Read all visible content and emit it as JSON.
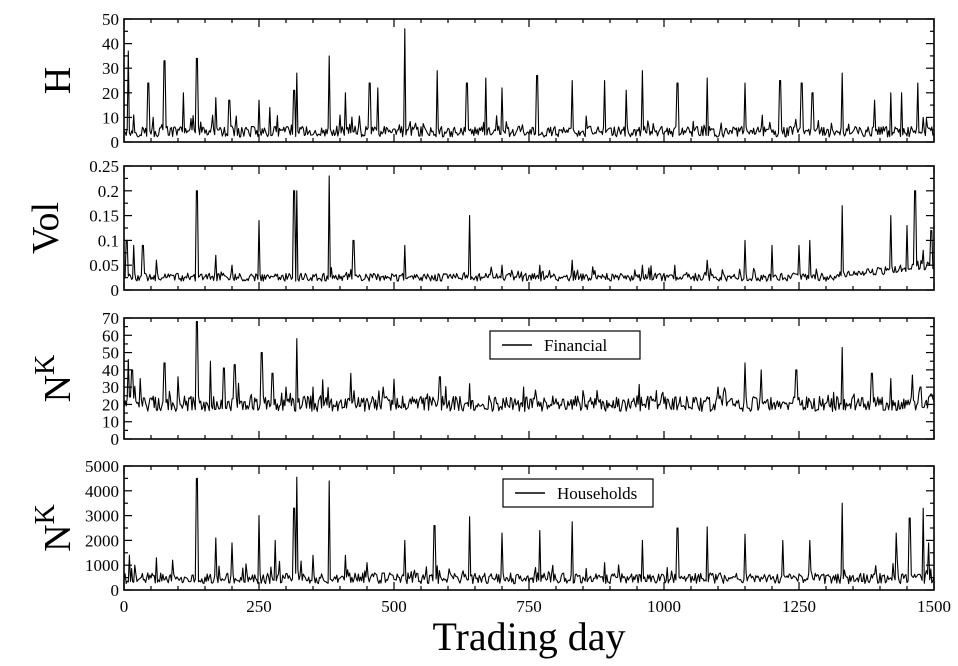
{
  "chart_data": [
    {
      "type": "line",
      "ylabel": "H",
      "ylabel_sup": "",
      "ylim": [
        0,
        50
      ],
      "yticks": [
        "0",
        "10",
        "20",
        "30",
        "40",
        "50"
      ],
      "xlim": [
        0,
        1500
      ],
      "xticks": [
        "0",
        "250",
        "500",
        "750",
        "1000",
        "1250",
        "1500"
      ],
      "show_x_tick_labels": false,
      "legend": "",
      "series": [
        {
          "values_shown": "noisy daily series",
          "baseline": 4,
          "noise": 2.2,
          "spikes": [
            [
              8,
              37
            ],
            [
              18,
              11
            ],
            [
              45,
              24
            ],
            [
              75,
              33
            ],
            [
              110,
              20
            ],
            [
              135,
              34
            ],
            [
              170,
              18
            ],
            [
              195,
              17
            ],
            [
              250,
              17
            ],
            [
              270,
              14
            ],
            [
              315,
              21
            ],
            [
              320,
              28
            ],
            [
              380,
              35
            ],
            [
              410,
              20
            ],
            [
              455,
              24
            ],
            [
              470,
              22
            ],
            [
              520,
              46
            ],
            [
              580,
              29
            ],
            [
              635,
              24
            ],
            [
              670,
              26
            ],
            [
              700,
              22
            ],
            [
              765,
              27
            ],
            [
              830,
              25
            ],
            [
              890,
              25
            ],
            [
              930,
              21
            ],
            [
              960,
              29
            ],
            [
              1025,
              24
            ],
            [
              1080,
              26
            ],
            [
              1150,
              24
            ],
            [
              1215,
              25
            ],
            [
              1255,
              24
            ],
            [
              1275,
              20
            ],
            [
              1330,
              28
            ],
            [
              1390,
              17
            ],
            [
              1420,
              20
            ],
            [
              1440,
              20
            ],
            [
              1470,
              24
            ],
            [
              1480,
              10
            ]
          ]
        }
      ]
    },
    {
      "type": "line",
      "ylabel": "Vol",
      "ylabel_sup": "",
      "ylim": [
        0,
        0.25
      ],
      "yticks": [
        "0",
        "0.05",
        "0.1",
        "0.15",
        "0.2",
        "0.25"
      ],
      "xlim": [
        0,
        1500
      ],
      "xticks": [
        "0",
        "250",
        "500",
        "750",
        "1000",
        "1250",
        "1500"
      ],
      "show_x_tick_labels": false,
      "legend": "",
      "series": [
        {
          "values_shown": "noisy daily series",
          "baseline": 0.025,
          "noise": 0.008,
          "trend_end": 0.05,
          "spikes": [
            [
              5,
              0.1
            ],
            [
              18,
              0.09
            ],
            [
              35,
              0.09
            ],
            [
              60,
              0.06
            ],
            [
              135,
              0.2
            ],
            [
              170,
              0.07
            ],
            [
              200,
              0.05
            ],
            [
              250,
              0.14
            ],
            [
              315,
              0.2
            ],
            [
              320,
              0.2
            ],
            [
              380,
              0.23
            ],
            [
              425,
              0.1
            ],
            [
              520,
              0.09
            ],
            [
              640,
              0.15
            ],
            [
              700,
              0.05
            ],
            [
              770,
              0.05
            ],
            [
              830,
              0.06
            ],
            [
              960,
              0.05
            ],
            [
              1020,
              0.05
            ],
            [
              1080,
              0.06
            ],
            [
              1150,
              0.1
            ],
            [
              1200,
              0.09
            ],
            [
              1250,
              0.09
            ],
            [
              1270,
              0.1
            ],
            [
              1330,
              0.17
            ],
            [
              1420,
              0.15
            ],
            [
              1450,
              0.13
            ],
            [
              1465,
              0.2
            ],
            [
              1480,
              0.08
            ],
            [
              1495,
              0.12
            ]
          ]
        }
      ]
    },
    {
      "type": "line",
      "ylabel": "N",
      "ylabel_sup": "K",
      "ylim": [
        0,
        70
      ],
      "yticks": [
        "0",
        "10",
        "20",
        "30",
        "40",
        "50",
        "60",
        "70"
      ],
      "xlim": [
        0,
        1500
      ],
      "xticks": [
        "0",
        "250",
        "500",
        "750",
        "1000",
        "1250",
        "1500"
      ],
      "show_x_tick_labels": false,
      "legend": "Financial",
      "series": [
        {
          "name": "Financial",
          "values_shown": "noisy daily series",
          "baseline": 20,
          "noise": 4.5,
          "spikes": [
            [
              8,
              46
            ],
            [
              15,
              40
            ],
            [
              30,
              35
            ],
            [
              75,
              44
            ],
            [
              100,
              36
            ],
            [
              135,
              68
            ],
            [
              160,
              45
            ],
            [
              185,
              41
            ],
            [
              205,
              43
            ],
            [
              255,
              50
            ],
            [
              275,
              38
            ],
            [
              300,
              30
            ],
            [
              320,
              58
            ],
            [
              350,
              30
            ],
            [
              420,
              38
            ],
            [
              480,
              30
            ],
            [
              585,
              36
            ],
            [
              640,
              32
            ],
            [
              740,
              30
            ],
            [
              850,
              28
            ],
            [
              950,
              25
            ],
            [
              1100,
              30
            ],
            [
              1150,
              44
            ],
            [
              1180,
              40
            ],
            [
              1245,
              40
            ],
            [
              1330,
              53
            ],
            [
              1385,
              38
            ],
            [
              1420,
              35
            ],
            [
              1460,
              37
            ],
            [
              1475,
              30
            ],
            [
              1495,
              26
            ]
          ]
        }
      ]
    },
    {
      "type": "line",
      "ylabel": "N",
      "ylabel_sup": "K",
      "ylim": [
        0,
        5000
      ],
      "yticks": [
        "0",
        "1000",
        "2000",
        "3000",
        "4000",
        "5000"
      ],
      "xlim": [
        0,
        1500
      ],
      "xticks": [
        "0",
        "250",
        "500",
        "750",
        "1000",
        "1250",
        "1500"
      ],
      "show_x_tick_labels": true,
      "legend": "Households",
      "series": [
        {
          "name": "Households",
          "values_shown": "noisy daily series",
          "baseline": 450,
          "noise": 220,
          "spikes": [
            [
              10,
              1400
            ],
            [
              20,
              1000
            ],
            [
              60,
              1300
            ],
            [
              90,
              1200
            ],
            [
              135,
              4500
            ],
            [
              170,
              2100
            ],
            [
              200,
              1900
            ],
            [
              250,
              3000
            ],
            [
              280,
              2000
            ],
            [
              315,
              3300
            ],
            [
              320,
              4550
            ],
            [
              350,
              1400
            ],
            [
              380,
              4400
            ],
            [
              410,
              1400
            ],
            [
              450,
              1100
            ],
            [
              520,
              2000
            ],
            [
              575,
              2600
            ],
            [
              640,
              2950
            ],
            [
              700,
              2300
            ],
            [
              770,
              2400
            ],
            [
              830,
              2750
            ],
            [
              890,
              1100
            ],
            [
              960,
              2000
            ],
            [
              1025,
              2500
            ],
            [
              1080,
              2550
            ],
            [
              1150,
              2250
            ],
            [
              1220,
              2000
            ],
            [
              1270,
              2000
            ],
            [
              1330,
              3500
            ],
            [
              1430,
              2300
            ],
            [
              1455,
              2900
            ],
            [
              1480,
              3300
            ],
            [
              1490,
              1900
            ]
          ]
        }
      ]
    }
  ],
  "xlabel": "Trading day"
}
